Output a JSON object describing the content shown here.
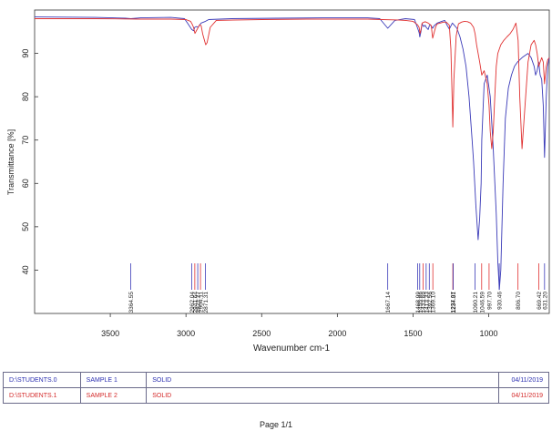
{
  "chart_data": {
    "type": "line",
    "xlabel": "Wavenumber cm-1",
    "ylabel": "Transmittance [%]",
    "xlim": [
      4000,
      600
    ],
    "ylim": [
      30,
      100
    ],
    "x_ticks": [
      3500,
      3000,
      2500,
      2000,
      1500,
      1000
    ],
    "y_ticks": [
      40,
      50,
      60,
      70,
      80,
      90
    ],
    "grid": false,
    "series": [
      {
        "color": "#3a3ab8",
        "x": [
          4000,
          3600,
          3400,
          3364,
          3300,
          3100,
          3010,
          2990,
          2962,
          2950,
          2942,
          2930,
          2920,
          2900,
          2871,
          2850,
          2700,
          2400,
          2100,
          1800,
          1720,
          1667,
          1620,
          1550,
          1490,
          1468,
          1460,
          1455,
          1448,
          1440,
          1430,
          1420,
          1413,
          1400,
          1392,
          1385,
          1370,
          1360,
          1340,
          1310,
          1290,
          1275,
          1260,
          1240,
          1230,
          1210,
          1190,
          1170,
          1150,
          1130,
          1110,
          1100,
          1085,
          1070,
          1060,
          1050,
          1046,
          1030,
          1010,
          990,
          970,
          950,
          940,
          930,
          920,
          905,
          890,
          870,
          850,
          830,
          810,
          780,
          760,
          740,
          720,
          700,
          690,
          680,
          670,
          660,
          650,
          640,
          631,
          620,
          610,
          600
        ],
        "y": [
          98.4,
          98.3,
          98.1,
          98.0,
          98.2,
          98.3,
          98.0,
          97.0,
          95.5,
          95.2,
          96.0,
          96.2,
          96.0,
          97.0,
          97.4,
          97.8,
          98.0,
          98.1,
          98.2,
          98.2,
          98.0,
          95.8,
          97.6,
          98.0,
          97.8,
          95.6,
          94.8,
          93.8,
          95.0,
          96.8,
          96.2,
          96.5,
          96.0,
          95.5,
          96.4,
          96.6,
          95.8,
          96.4,
          97.0,
          97.4,
          97.6,
          96.5,
          95.6,
          97.0,
          96.6,
          95.8,
          93.8,
          91.0,
          87.0,
          80.0,
          70.0,
          65.0,
          55.0,
          47.0,
          52.0,
          60.0,
          70.0,
          83.0,
          85.0,
          80.0,
          68.0,
          53.0,
          42.0,
          35.5,
          40.0,
          60.0,
          75.0,
          82.0,
          85.0,
          87.0,
          88.0,
          89.0,
          89.5,
          90.0,
          89.0,
          87.0,
          85.0,
          86.0,
          88.0,
          85.0,
          84.0,
          78.0,
          66.0,
          80.0,
          87.0,
          89.0
        ]
      },
      {
        "color": "#e03030",
        "x": [
          4000,
          3600,
          3300,
          3100,
          3000,
          2970,
          2960,
          2950,
          2941,
          2925,
          2910,
          2900,
          2890,
          2870,
          2860,
          2840,
          2800,
          2500,
          2200,
          2000,
          1800,
          1700,
          1600,
          1550,
          1500,
          1470,
          1460,
          1454,
          1448,
          1440,
          1420,
          1400,
          1380,
          1370,
          1350,
          1340,
          1320,
          1300,
          1280,
          1260,
          1250,
          1240,
          1237,
          1230,
          1215,
          1200,
          1180,
          1160,
          1140,
          1120,
          1100,
          1090,
          1080,
          1060,
          1046,
          1030,
          1010,
          998,
          990,
          980,
          970,
          960,
          950,
          940,
          920,
          900,
          880,
          860,
          840,
          820,
          806,
          795,
          780,
          760,
          740,
          720,
          700,
          690,
          680,
          669,
          660,
          650,
          640,
          631,
          620,
          610,
          600
        ],
        "y": [
          98.0,
          98.0,
          97.9,
          97.9,
          97.8,
          97.4,
          96.8,
          96.0,
          94.6,
          95.6,
          96.6,
          96.4,
          94.5,
          92.0,
          92.5,
          96.0,
          97.6,
          97.8,
          97.9,
          97.9,
          97.9,
          97.8,
          97.7,
          97.6,
          97.4,
          96.6,
          96.0,
          94.6,
          95.4,
          97.0,
          97.3,
          97.0,
          96.4,
          93.5,
          96.2,
          96.8,
          97.0,
          97.2,
          97.2,
          96.5,
          91.0,
          78.0,
          73.0,
          84.0,
          94.0,
          96.8,
          97.2,
          97.4,
          97.3,
          97.0,
          96.0,
          94.5,
          92.0,
          88.0,
          85.0,
          86.0,
          83.0,
          78.0,
          72.0,
          68.0,
          72.0,
          80.0,
          87.0,
          90.0,
          92.0,
          93.0,
          93.8,
          94.5,
          95.5,
          97.0,
          93.0,
          80.0,
          68.0,
          78.0,
          88.0,
          92.0,
          93.0,
          92.0,
          90.0,
          87.0,
          88.0,
          89.0,
          88.0,
          83.0,
          87.0,
          88.5,
          89.0
        ]
      }
    ],
    "peak_labels": [
      {
        "value": 3364.55,
        "color": "#3a3ab8"
      },
      {
        "value": 2962.04,
        "color": "#3a3ab8"
      },
      {
        "value": 2941.64,
        "color": "#e03030"
      },
      {
        "value": 2922.27,
        "color": "#3a3ab8"
      },
      {
        "value": 2904.11,
        "color": "#e03030"
      },
      {
        "value": 2871.31,
        "color": "#3a3ab8"
      },
      {
        "value": 1667.14,
        "color": "#3a3ab8"
      },
      {
        "value": 1468.99,
        "color": "#3a3ab8"
      },
      {
        "value": 1455.86,
        "color": "#3a3ab8"
      },
      {
        "value": 1433.69,
        "color": "#e03030"
      },
      {
        "value": 1413.33,
        "color": "#3a3ab8"
      },
      {
        "value": 1392.56,
        "color": "#3a3ab8"
      },
      {
        "value": 1369.1,
        "color": "#e03030"
      },
      {
        "value": 1237.07,
        "color": "#e03030"
      },
      {
        "value": 1234.31,
        "color": "#3a3ab8"
      },
      {
        "value": 1090.21,
        "color": "#3a3ab8"
      },
      {
        "value": 1046.59,
        "color": "#e03030"
      },
      {
        "value": 997.7,
        "color": "#e03030"
      },
      {
        "value": 930.46,
        "color": "#3a3ab8"
      },
      {
        "value": 806.7,
        "color": "#e03030"
      },
      {
        "value": 669.42,
        "color": "#e03030"
      },
      {
        "value": 631.2,
        "color": "#3a3ab8"
      }
    ]
  },
  "table": {
    "rows": [
      {
        "path": "D:\\STUDENTS.0",
        "sample": "SAMPLE 1",
        "state": "SOLID",
        "date": "04/11/2019"
      },
      {
        "path": "D:\\STUDENTS.1",
        "sample": "SAMPLE  2",
        "state": "SOLID",
        "date": "04/11/2019"
      }
    ]
  },
  "footer": {
    "page": "Page 1/1"
  }
}
